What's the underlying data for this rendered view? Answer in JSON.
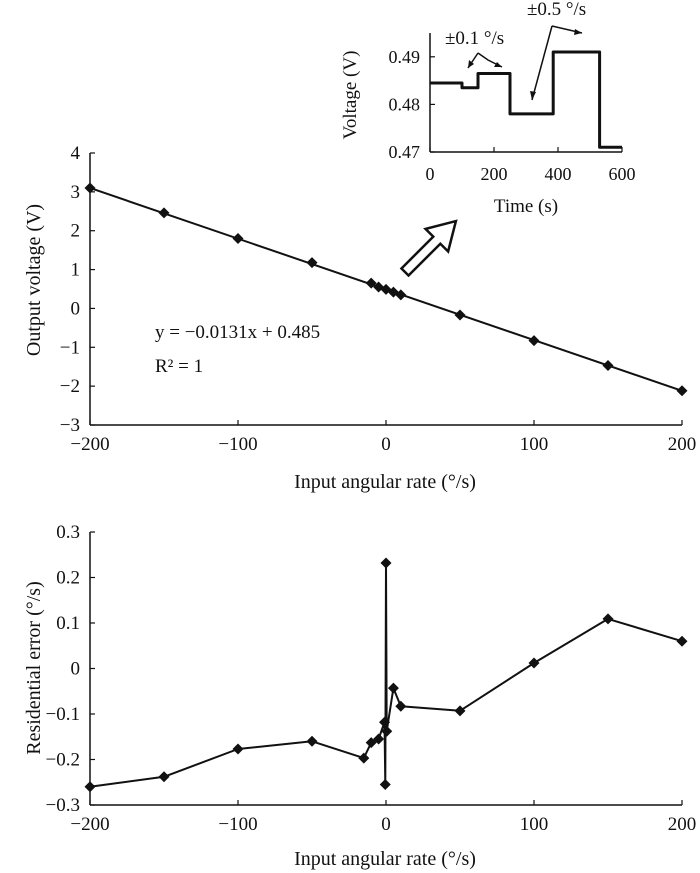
{
  "chart_data": [
    {
      "type": "line",
      "xlabel": "Input angular rate (°/s)",
      "ylabel": "Output voltage (V)",
      "xlim": [
        -200,
        200
      ],
      "ylim": [
        -3,
        4
      ],
      "xticks": [
        "−200",
        "−100",
        "0",
        "100",
        "200"
      ],
      "yticks": [
        "−3",
        "−2",
        "−1",
        "0",
        "1",
        "2",
        "3",
        "4"
      ],
      "equation": {
        "line1": "y = −0.0131x + 0.485",
        "line2": "R² = 1"
      },
      "fit": {
        "slope": -0.0131,
        "intercept": 0.485
      },
      "x": [
        -200,
        -150,
        -100,
        -50,
        -10,
        -5,
        0,
        5,
        10,
        50,
        100,
        150,
        200
      ],
      "y": [
        3.1,
        2.46,
        1.8,
        1.18,
        0.65,
        0.55,
        0.49,
        0.42,
        0.35,
        -0.17,
        -0.83,
        -1.47,
        -2.12
      ],
      "marker": "diamond",
      "grid": false
    },
    {
      "type": "line",
      "xlabel": "Time (s)",
      "ylabel": "Voltage (V)",
      "xlim": [
        0,
        600
      ],
      "ylim": [
        0.47,
        0.495
      ],
      "xticks": [
        "0",
        "200",
        "400",
        "600"
      ],
      "yticks": [
        "0.47",
        "0.48",
        "0.49"
      ],
      "annotations": [
        "±0.1 °/s",
        "±0.5 °/s"
      ],
      "x": [
        0,
        100,
        100,
        150,
        150,
        250,
        250,
        385,
        385,
        530,
        530,
        600
      ],
      "y": [
        0.4845,
        0.4845,
        0.4835,
        0.4835,
        0.4865,
        0.4865,
        0.478,
        0.478,
        0.491,
        0.491,
        0.471,
        0.471
      ],
      "placement": "inset top-right"
    },
    {
      "type": "line",
      "xlabel": "Input angular rate (°/s)",
      "ylabel": "Residential error (°/s)",
      "xlim": [
        -200,
        200
      ],
      "ylim": [
        -0.3,
        0.3
      ],
      "xticks": [
        "−200",
        "−100",
        "0",
        "100",
        "200"
      ],
      "yticks": [
        "−0.3",
        "−0.2",
        "−0.1",
        "0",
        "0.1",
        "0.2",
        "0.3"
      ],
      "x": [
        -200,
        -150,
        -100,
        -50,
        -15,
        -10,
        -5,
        -1,
        -0.5,
        0,
        0.5,
        5,
        10,
        50,
        100,
        150,
        200
      ],
      "y": [
        -0.26,
        -0.238,
        -0.177,
        -0.16,
        -0.197,
        -0.163,
        -0.155,
        -0.118,
        -0.255,
        0.232,
        -0.138,
        -0.043,
        -0.083,
        -0.093,
        0.012,
        0.109,
        0.06
      ],
      "marker": "diamond",
      "grid": false
    }
  ]
}
